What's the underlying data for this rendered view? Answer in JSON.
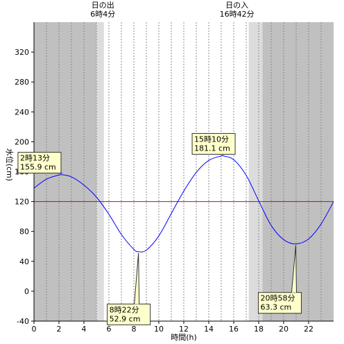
{
  "chart_data": {
    "type": "line",
    "xlabel": "時間(h)",
    "ylabel": "水位(cm)",
    "xlim": [
      0,
      24
    ],
    "ylim": [
      -40,
      360
    ],
    "x_ticks": [
      0,
      2,
      4,
      6,
      8,
      10,
      12,
      14,
      16,
      18,
      20,
      22
    ],
    "y_ticks": [
      -40,
      0,
      40,
      80,
      120,
      160,
      200,
      240,
      280,
      320
    ],
    "grid": "vertical dotted every 1h",
    "reference_line": {
      "value": 120,
      "color": "#e00000"
    },
    "sunrise": {
      "label": "日の出",
      "time_text": "6時4分",
      "hour": 6.067
    },
    "sunset": {
      "label": "日の入",
      "time_text": "16時42分",
      "hour": 16.7
    },
    "night_shading": {
      "dark_color": "#c0c0c0",
      "twilight_color": "#dcdcdc",
      "dark_ranges": [
        [
          0,
          5.0
        ],
        [
          18.3,
          24
        ]
      ],
      "twilight_ranges": [
        [
          5.0,
          5.6
        ],
        [
          17.2,
          18.3
        ]
      ]
    },
    "series": [
      {
        "color": "#0000ff",
        "x": [
          0,
          1,
          2,
          2.22,
          3,
          4,
          5,
          6,
          7,
          8,
          8.37,
          9,
          10,
          11,
          12,
          13,
          14,
          15,
          15.17,
          16,
          17,
          18,
          19,
          20,
          20.97,
          22,
          23,
          24
        ],
        "y": [
          138,
          150,
          155.5,
          155.9,
          153,
          142,
          126,
          103,
          76,
          56,
          52.9,
          55,
          74,
          104,
          134,
          159,
          175,
          181,
          181.1,
          176,
          155,
          121,
          88,
          69,
          63.3,
          70,
          90,
          120
        ]
      }
    ],
    "annotations": [
      {
        "time": "2時13分",
        "value": "155.9 cm",
        "x": 2.22,
        "y": 155.9
      },
      {
        "time": "8時22分",
        "value": "52.9 cm",
        "x": 8.37,
        "y": 52.9
      },
      {
        "time": "15時10分",
        "value": "181.1 cm",
        "x": 15.17,
        "y": 181.1
      },
      {
        "time": "20時58分",
        "value": "63.3 cm",
        "x": 20.97,
        "y": 63.3
      }
    ]
  }
}
